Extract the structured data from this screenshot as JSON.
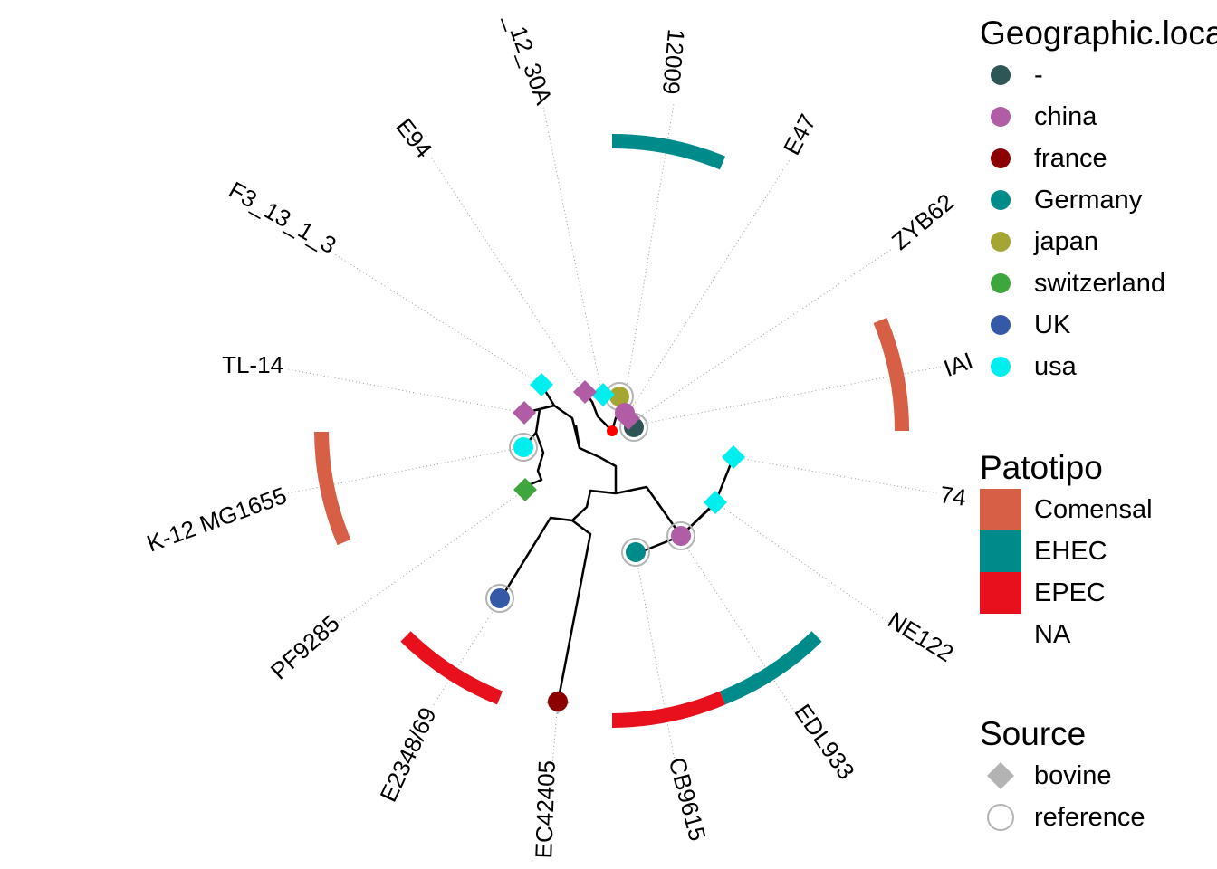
{
  "tips": [
    {
      "label": "12009"
    },
    {
      "label": "E47"
    },
    {
      "label": "ZYB62"
    },
    {
      "label": "IAI"
    },
    {
      "label": "74"
    },
    {
      "label": "NE122"
    },
    {
      "label": "EDL933"
    },
    {
      "label": "CB9615"
    },
    {
      "label": "EC42405"
    },
    {
      "label": "E2348/69"
    },
    {
      "label": "PF9285"
    },
    {
      "label": "K-12 MG1655"
    },
    {
      "label": "TL-14"
    },
    {
      "label": "F3_13_1_3"
    },
    {
      "label": "E94"
    },
    {
      "label": "_12_30A"
    }
  ],
  "legends": {
    "location": {
      "title": "Geographic.location",
      "items": [
        {
          "label": "-",
          "color": "#2F5657"
        },
        {
          "label": "china",
          "color": "#B15DA6"
        },
        {
          "label": "france",
          "color": "#8B0000"
        },
        {
          "label": "Germany",
          "color": "#008B8B"
        },
        {
          "label": "japan",
          "color": "#A5A533"
        },
        {
          "label": "switzerland",
          "color": "#3DA63D"
        },
        {
          "label": "UK",
          "color": "#3559A6"
        },
        {
          "label": "usa",
          "color": "#00EEEE"
        }
      ]
    },
    "patotipo": {
      "title": "Patotipo",
      "items": [
        {
          "label": "Comensal",
          "color": "#D65F45"
        },
        {
          "label": "EHEC",
          "color": "#008B8B"
        },
        {
          "label": "EPEC",
          "color": "#E8101C"
        },
        {
          "label": "NA",
          "color": "#FFFFFF"
        }
      ]
    },
    "source": {
      "title": "Source",
      "items": [
        {
          "label": "bovine",
          "shape": "diamond",
          "color": "#B3B3B3"
        },
        {
          "label": "reference",
          "shape": "open-circle",
          "color": "#B3B3B3"
        }
      ]
    }
  }
}
